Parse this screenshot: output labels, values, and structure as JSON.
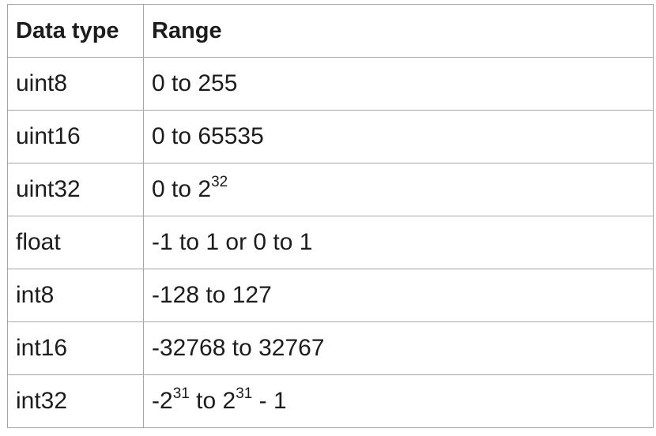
{
  "table": {
    "headers": [
      "Data type",
      "Range"
    ],
    "rows": [
      {
        "type": "uint8",
        "range": [
          {
            "t": "0 to 255"
          }
        ]
      },
      {
        "type": "uint16",
        "range": [
          {
            "t": "0 to 65535"
          }
        ]
      },
      {
        "type": "uint32",
        "range": [
          {
            "t": "0 to 2"
          },
          {
            "sup": "32"
          }
        ]
      },
      {
        "type": "float",
        "range": [
          {
            "t": "-1 to 1 or 0 to 1"
          }
        ]
      },
      {
        "type": "int8",
        "range": [
          {
            "t": "-128 to 127"
          }
        ]
      },
      {
        "type": "int16",
        "range": [
          {
            "t": "-32768 to 32767"
          }
        ]
      },
      {
        "type": "int32",
        "range": [
          {
            "t": "-2"
          },
          {
            "sup": "31"
          },
          {
            "t": " to 2"
          },
          {
            "sup": "31"
          },
          {
            "t": " - 1"
          }
        ]
      }
    ]
  }
}
